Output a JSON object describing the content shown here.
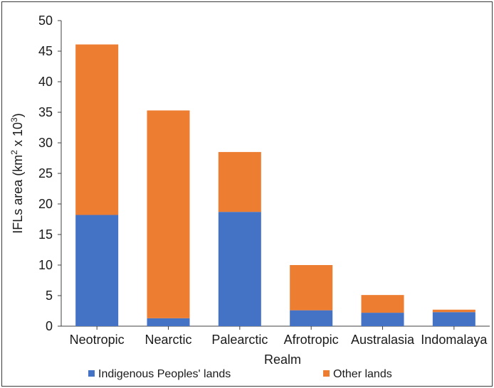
{
  "chart_data": {
    "type": "bar",
    "stacked": true,
    "categories": [
      "Neotropic",
      "Nearctic",
      "Palearctic",
      "Afrotropic",
      "Australasia",
      "Indomalaya"
    ],
    "series": [
      {
        "name": "Indigenous Peoples' lands",
        "color": "#4472C4",
        "values": [
          18.2,
          1.3,
          18.7,
          2.6,
          2.2,
          2.3
        ]
      },
      {
        "name": "Other lands",
        "color": "#ED7D31",
        "values": [
          27.9,
          34.0,
          9.8,
          7.4,
          2.9,
          0.4
        ]
      }
    ],
    "xlabel": "Realm",
    "ylabel": "IFLs area (km² x 10³)",
    "ylim": [
      0,
      50
    ],
    "yticks": [
      0,
      5,
      10,
      15,
      20,
      25,
      30,
      35,
      40,
      45,
      50
    ],
    "grid": false,
    "legend_position": "bottom"
  }
}
